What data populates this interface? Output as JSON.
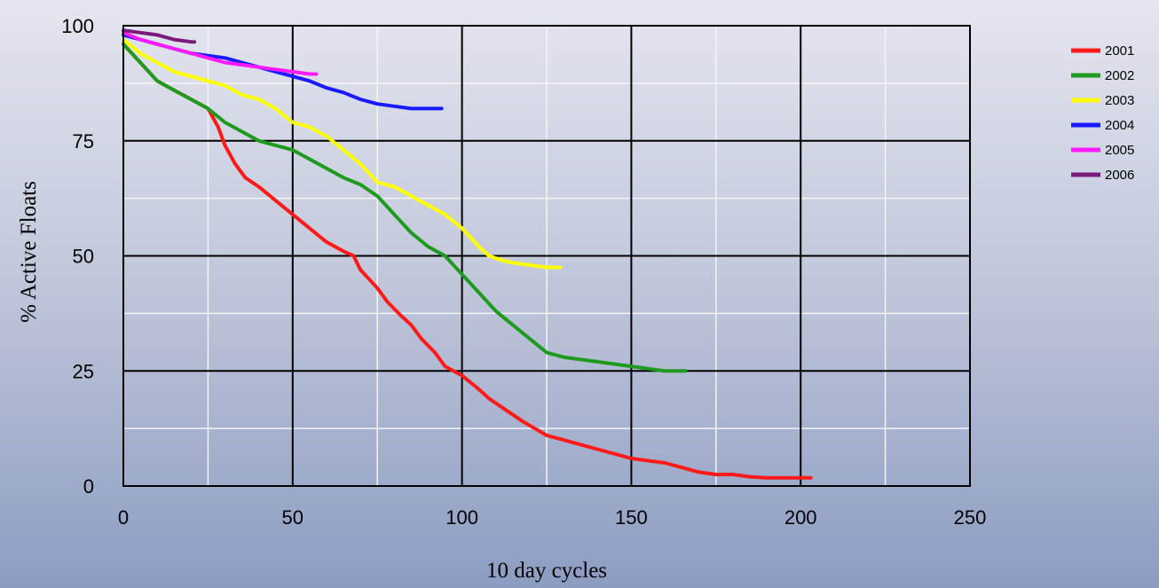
{
  "chart_data": {
    "type": "line",
    "xlabel": "10 day cycles",
    "ylabel": "% Active Floats",
    "xlim": [
      0,
      250
    ],
    "ylim": [
      0,
      100
    ],
    "x_ticks": [
      0,
      50,
      100,
      150,
      200,
      250
    ],
    "y_ticks": [
      0,
      25,
      50,
      75,
      100
    ],
    "major_grid": true,
    "minor_grid": true,
    "legend_position": "right",
    "series": [
      {
        "name": "2001",
        "color": "#ff1a1a",
        "points": [
          [
            0,
            96
          ],
          [
            5,
            92
          ],
          [
            10,
            88
          ],
          [
            15,
            86
          ],
          [
            20,
            84
          ],
          [
            25,
            82
          ],
          [
            28,
            78
          ],
          [
            30,
            74
          ],
          [
            33,
            70
          ],
          [
            36,
            67
          ],
          [
            40,
            65
          ],
          [
            45,
            62
          ],
          [
            50,
            59
          ],
          [
            55,
            56
          ],
          [
            60,
            53
          ],
          [
            65,
            51
          ],
          [
            68,
            50
          ],
          [
            70,
            47
          ],
          [
            75,
            43
          ],
          [
            78,
            40
          ],
          [
            82,
            37
          ],
          [
            85,
            35
          ],
          [
            88,
            32
          ],
          [
            92,
            29
          ],
          [
            95,
            26
          ],
          [
            100,
            24
          ],
          [
            105,
            21
          ],
          [
            108,
            19
          ],
          [
            112,
            17
          ],
          [
            118,
            14
          ],
          [
            125,
            11
          ],
          [
            130,
            10
          ],
          [
            135,
            9
          ],
          [
            140,
            8
          ],
          [
            145,
            7
          ],
          [
            150,
            6
          ],
          [
            155,
            5.5
          ],
          [
            160,
            5
          ],
          [
            165,
            4
          ],
          [
            170,
            3
          ],
          [
            175,
            2.5
          ],
          [
            180,
            2.5
          ],
          [
            185,
            2
          ],
          [
            190,
            1.8
          ],
          [
            195,
            1.8
          ],
          [
            200,
            1.8
          ],
          [
            203,
            1.8
          ]
        ]
      },
      {
        "name": "2002",
        "color": "#1e9a1e",
        "points": [
          [
            0,
            96
          ],
          [
            5,
            92
          ],
          [
            10,
            88
          ],
          [
            15,
            86
          ],
          [
            20,
            84
          ],
          [
            25,
            82
          ],
          [
            30,
            79
          ],
          [
            35,
            77
          ],
          [
            40,
            75
          ],
          [
            45,
            74
          ],
          [
            50,
            73
          ],
          [
            55,
            71
          ],
          [
            60,
            69
          ],
          [
            65,
            67
          ],
          [
            70,
            65.5
          ],
          [
            75,
            63
          ],
          [
            80,
            59
          ],
          [
            85,
            55
          ],
          [
            90,
            52
          ],
          [
            95,
            50
          ],
          [
            100,
            46
          ],
          [
            105,
            42
          ],
          [
            110,
            38
          ],
          [
            115,
            35
          ],
          [
            120,
            32
          ],
          [
            125,
            29
          ],
          [
            130,
            28
          ],
          [
            135,
            27.5
          ],
          [
            140,
            27
          ],
          [
            145,
            26.5
          ],
          [
            150,
            26
          ],
          [
            155,
            25.5
          ],
          [
            160,
            25
          ],
          [
            166,
            25
          ]
        ]
      },
      {
        "name": "2003",
        "color": "#ffff00",
        "points": [
          [
            0,
            97
          ],
          [
            5,
            94
          ],
          [
            10,
            92
          ],
          [
            15,
            90
          ],
          [
            20,
            89
          ],
          [
            25,
            88
          ],
          [
            30,
            87
          ],
          [
            35,
            85
          ],
          [
            40,
            84
          ],
          [
            45,
            82
          ],
          [
            50,
            79
          ],
          [
            55,
            78
          ],
          [
            60,
            76
          ],
          [
            65,
            73
          ],
          [
            70,
            70
          ],
          [
            75,
            66
          ],
          [
            80,
            65
          ],
          [
            85,
            63
          ],
          [
            90,
            61
          ],
          [
            95,
            59
          ],
          [
            100,
            56
          ],
          [
            105,
            52
          ],
          [
            108,
            50
          ],
          [
            112,
            49
          ],
          [
            115,
            48.5
          ],
          [
            120,
            48
          ],
          [
            125,
            47.5
          ],
          [
            129,
            47.5
          ]
        ]
      },
      {
        "name": "2004",
        "color": "#1a1aff",
        "points": [
          [
            0,
            98
          ],
          [
            5,
            97
          ],
          [
            10,
            96
          ],
          [
            15,
            95
          ],
          [
            20,
            94
          ],
          [
            25,
            93.5
          ],
          [
            30,
            93
          ],
          [
            35,
            92
          ],
          [
            40,
            91
          ],
          [
            45,
            90
          ],
          [
            50,
            89
          ],
          [
            55,
            88
          ],
          [
            60,
            86.5
          ],
          [
            65,
            85.5
          ],
          [
            70,
            84
          ],
          [
            75,
            83
          ],
          [
            80,
            82.5
          ],
          [
            85,
            82
          ],
          [
            90,
            82
          ],
          [
            94,
            82
          ]
        ]
      },
      {
        "name": "2005",
        "color": "#ff1aff",
        "points": [
          [
            0,
            98.5
          ],
          [
            5,
            97
          ],
          [
            10,
            96
          ],
          [
            15,
            95
          ],
          [
            20,
            94
          ],
          [
            25,
            93
          ],
          [
            30,
            92
          ],
          [
            35,
            91.5
          ],
          [
            40,
            91
          ],
          [
            45,
            90.5
          ],
          [
            50,
            90
          ],
          [
            55,
            89.5
          ],
          [
            57,
            89.5
          ]
        ]
      },
      {
        "name": "2006",
        "color": "#7a1a7a",
        "points": [
          [
            0,
            99
          ],
          [
            5,
            98.5
          ],
          [
            10,
            98
          ],
          [
            15,
            97
          ],
          [
            20,
            96.5
          ],
          [
            21,
            96.5
          ]
        ]
      }
    ]
  }
}
